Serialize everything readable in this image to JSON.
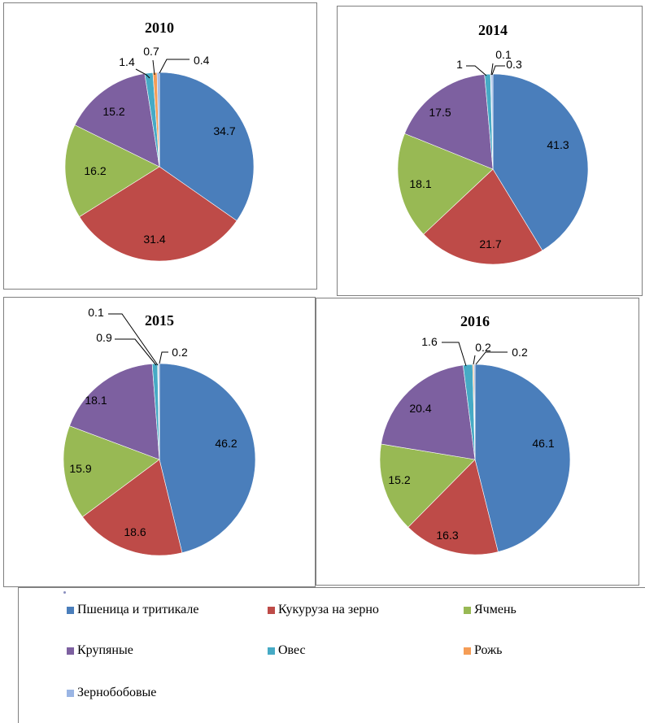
{
  "colors": {
    "wheat": "#4A7EBB",
    "corn": "#BE4B48",
    "barley": "#98B954",
    "groats": "#7D60A0",
    "oats": "#46AAC5",
    "rye": "#F59D56",
    "legumes": "#9AB5E4"
  },
  "legend": {
    "items": [
      {
        "label": "Пшеница и тритикале",
        "color": "#4A7EBB"
      },
      {
        "label": "Кукуруза на зерно",
        "color": "#BE4B48"
      },
      {
        "label": "Ячмень",
        "color": "#98B954"
      },
      {
        "label": "Крупяные",
        "color": "#7D60A0"
      },
      {
        "label": "Овес",
        "color": "#46AAC5"
      },
      {
        "label": "Рожь",
        "color": "#F59D56"
      },
      {
        "label": "Зернобобовые",
        "color": "#9AB5E4"
      }
    ]
  },
  "chart_data": [
    {
      "type": "pie",
      "title": "2010",
      "categories": [
        "Пшеница и тритикале",
        "Кукуруза на зерно",
        "Ячмень",
        "Крупяные",
        "Овес",
        "Рожь",
        "Зернобобовые"
      ],
      "values": [
        34.7,
        31.4,
        16.2,
        15.2,
        1.4,
        0.7,
        0.4
      ],
      "labels": [
        "34.7",
        "31.4",
        "16.2",
        "15.2",
        "1.4",
        "0.7",
        "0.4"
      ]
    },
    {
      "type": "pie",
      "title": "2014",
      "categories": [
        "Пшеница и тритикале",
        "Кукуруза на зерно",
        "Ячмень",
        "Крупяные",
        "Овес",
        "Рожь",
        "Зернобобовые"
      ],
      "values": [
        41.3,
        21.7,
        18.1,
        17.5,
        1,
        0.1,
        0.3
      ],
      "labels": [
        "41.3",
        "21.7",
        "18.1",
        "17.5",
        "1",
        "0.1",
        "0.3"
      ]
    },
    {
      "type": "pie",
      "title": "2015",
      "categories": [
        "Пшеница и тритикале",
        "Кукуруза на зерно",
        "Ячмень",
        "Крупяные",
        "Овес",
        "Рожь",
        "Зернобобовые"
      ],
      "values": [
        46.2,
        18.6,
        15.9,
        18.1,
        0.9,
        0.1,
        0.2
      ],
      "labels": [
        "46.2",
        "18.6",
        "15.9",
        "18.1",
        "0.9",
        "0.1",
        "0.2"
      ]
    },
    {
      "type": "pie",
      "title": "2016",
      "categories": [
        "Пшеница и тритикале",
        "Кукуруза на зерно",
        "Ячмень",
        "Крупяные",
        "Овес",
        "Рожь",
        "Зернобобовые"
      ],
      "values": [
        46.1,
        16.3,
        15.2,
        20.4,
        1.6,
        0.2,
        0.2
      ],
      "labels": [
        "46.1",
        "16.3",
        "15.2",
        "20.4",
        "1.6",
        "0.2",
        "0.2"
      ]
    }
  ]
}
